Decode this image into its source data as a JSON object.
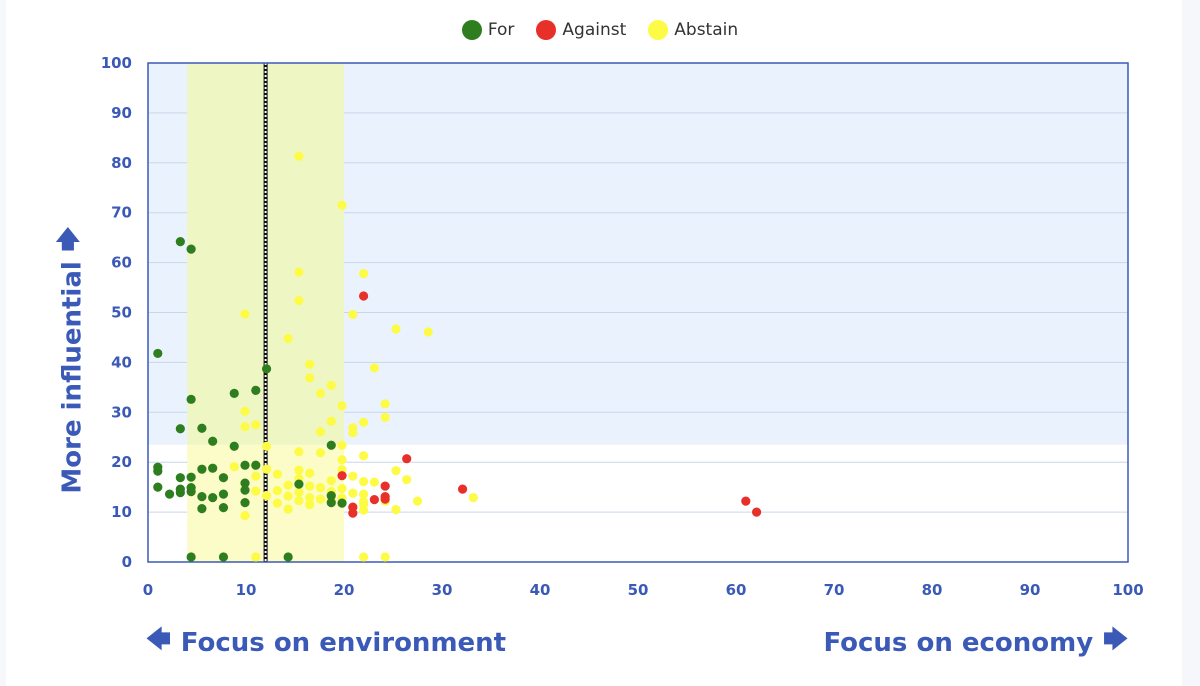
{
  "legend": {
    "for_label": "For",
    "against_label": "Against",
    "abstain_label": "Abstain"
  },
  "colors": {
    "for": "#2e7d1e",
    "against": "#e8302a",
    "abstain": "#fdfb45",
    "upper_region": "#eaf3fd",
    "focus_band": "#f2f8c8",
    "grid": "#c9d6ea",
    "axis_text": "#3b5ab7"
  },
  "axis_labels": {
    "y_label": "More influential",
    "x_left_label": "Focus on environment",
    "x_right_label": "Focus on economy",
    "y_arrow_icon": "arrow-up-icon",
    "x_left_arrow_icon": "arrow-left-icon",
    "x_right_arrow_icon": "arrow-right-icon"
  },
  "chart_data": {
    "type": "scatter",
    "xlim": [
      0,
      100
    ],
    "ylim": [
      0,
      100
    ],
    "x_ticks": [
      0,
      10,
      20,
      30,
      40,
      50,
      60,
      70,
      80,
      90,
      100
    ],
    "y_ticks": [
      0,
      10,
      20,
      30,
      40,
      50,
      60,
      70,
      80,
      90,
      100
    ],
    "grid": true,
    "legend_position": "top-center",
    "upper_region_y_min": 23.5,
    "focus_band_x": [
      4,
      20
    ],
    "reference_line_x": 12,
    "series": [
      {
        "name": "For",
        "color": "#2e7d1e",
        "points": [
          [
            1,
            41.8
          ],
          [
            1,
            19
          ],
          [
            1,
            18.2
          ],
          [
            1,
            15
          ],
          [
            2.2,
            13.6
          ],
          [
            3.3,
            64.2
          ],
          [
            3.3,
            26.7
          ],
          [
            3.3,
            16.9
          ],
          [
            3.3,
            13.9
          ],
          [
            3.3,
            14.6
          ],
          [
            4.4,
            62.7
          ],
          [
            4.4,
            32.6
          ],
          [
            4.4,
            17
          ],
          [
            4.4,
            14.9
          ],
          [
            4.4,
            14.1
          ],
          [
            4.4,
            1
          ],
          [
            5.5,
            26.8
          ],
          [
            5.5,
            18.6
          ],
          [
            5.5,
            13.1
          ],
          [
            5.5,
            10.7
          ],
          [
            6.6,
            24.2
          ],
          [
            6.6,
            18.8
          ],
          [
            6.6,
            12.9
          ],
          [
            7.7,
            16.9
          ],
          [
            7.7,
            13.6
          ],
          [
            7.7,
            10.9
          ],
          [
            7.7,
            1
          ],
          [
            8.8,
            33.8
          ],
          [
            8.8,
            23.2
          ],
          [
            9.9,
            19.4
          ],
          [
            9.9,
            15.8
          ],
          [
            9.9,
            14.4
          ],
          [
            9.9,
            11.9
          ],
          [
            11,
            34.4
          ],
          [
            11,
            19.4
          ],
          [
            12.1,
            38.7
          ],
          [
            14.3,
            1
          ],
          [
            15.4,
            15.6
          ],
          [
            18.7,
            23.4
          ],
          [
            18.7,
            13.3
          ],
          [
            18.7,
            11.9
          ],
          [
            19.8,
            11.8
          ]
        ]
      },
      {
        "name": "Against",
        "color": "#e8302a",
        "points": [
          [
            22,
            53.3
          ],
          [
            26.4,
            20.7
          ],
          [
            19.8,
            17.3
          ],
          [
            24.2,
            15.2
          ],
          [
            32.1,
            14.6
          ],
          [
            24.2,
            13.1
          ],
          [
            23.1,
            12.5
          ],
          [
            24.2,
            12.6
          ],
          [
            20.9,
            11
          ],
          [
            20.9,
            9.8
          ],
          [
            61,
            12.2
          ],
          [
            62.1,
            10
          ]
        ]
      },
      {
        "name": "Abstain",
        "color": "#fdfb45",
        "points": [
          [
            15.4,
            81.3
          ],
          [
            19.8,
            71.5
          ],
          [
            15.4,
            58.1
          ],
          [
            22,
            57.8
          ],
          [
            15.4,
            52.4
          ],
          [
            20.9,
            49.6
          ],
          [
            9.9,
            49.7
          ],
          [
            25.3,
            46.7
          ],
          [
            28.6,
            46.1
          ],
          [
            14.3,
            44.8
          ],
          [
            16.5,
            39.6
          ],
          [
            23.1,
            38.9
          ],
          [
            16.5,
            36.9
          ],
          [
            18.7,
            35.4
          ],
          [
            17.6,
            33.8
          ],
          [
            24.2,
            31.7
          ],
          [
            19.8,
            31.3
          ],
          [
            9.9,
            30.2
          ],
          [
            24.2,
            29
          ],
          [
            18.7,
            28.2
          ],
          [
            22,
            28
          ],
          [
            11,
            27.5
          ],
          [
            9.9,
            27.1
          ],
          [
            20.9,
            26.9
          ],
          [
            17.6,
            26.1
          ],
          [
            20.9,
            25.9
          ],
          [
            19.8,
            23.4
          ],
          [
            12.1,
            23.2
          ],
          [
            15.4,
            22.1
          ],
          [
            17.6,
            21.9
          ],
          [
            22,
            21.3
          ],
          [
            19.8,
            20.5
          ],
          [
            11,
            19.4
          ],
          [
            8.8,
            19.1
          ],
          [
            12.1,
            18.6
          ],
          [
            15.4,
            18.4
          ],
          [
            25.3,
            18.3
          ],
          [
            19.8,
            18.5
          ],
          [
            16.5,
            17.8
          ],
          [
            13.2,
            17.6
          ],
          [
            20.9,
            17.2
          ],
          [
            11,
            17.2
          ],
          [
            26.4,
            16.5
          ],
          [
            15.4,
            16.7
          ],
          [
            18.7,
            16.3
          ],
          [
            22,
            16.1
          ],
          [
            23.1,
            16
          ],
          [
            9.9,
            15.8
          ],
          [
            14.3,
            15.4
          ],
          [
            16.5,
            15.2
          ],
          [
            17.6,
            14.9
          ],
          [
            19.8,
            14.7
          ],
          [
            13.2,
            14.3
          ],
          [
            11,
            14.2
          ],
          [
            15.4,
            14
          ],
          [
            18.7,
            14.1
          ],
          [
            20.9,
            13.8
          ],
          [
            22,
            13.6
          ],
          [
            12.1,
            13.3
          ],
          [
            14.3,
            13.2
          ],
          [
            16.5,
            12.9
          ],
          [
            17.6,
            12.6
          ],
          [
            19.8,
            12.8
          ],
          [
            15.4,
            12.3
          ],
          [
            18.7,
            12.4
          ],
          [
            22,
            12.1
          ],
          [
            24.2,
            12.2
          ],
          [
            27.5,
            12.2
          ],
          [
            33.2,
            12.9
          ],
          [
            13.2,
            11.8
          ],
          [
            16.5,
            11.5
          ],
          [
            22,
            11.6
          ],
          [
            14.3,
            10.6
          ],
          [
            20.9,
            10.9
          ],
          [
            22,
            10.4
          ],
          [
            25.3,
            10.5
          ],
          [
            9.9,
            9.3
          ],
          [
            11,
            1
          ],
          [
            22,
            1
          ],
          [
            24.2,
            1
          ]
        ]
      }
    ]
  }
}
